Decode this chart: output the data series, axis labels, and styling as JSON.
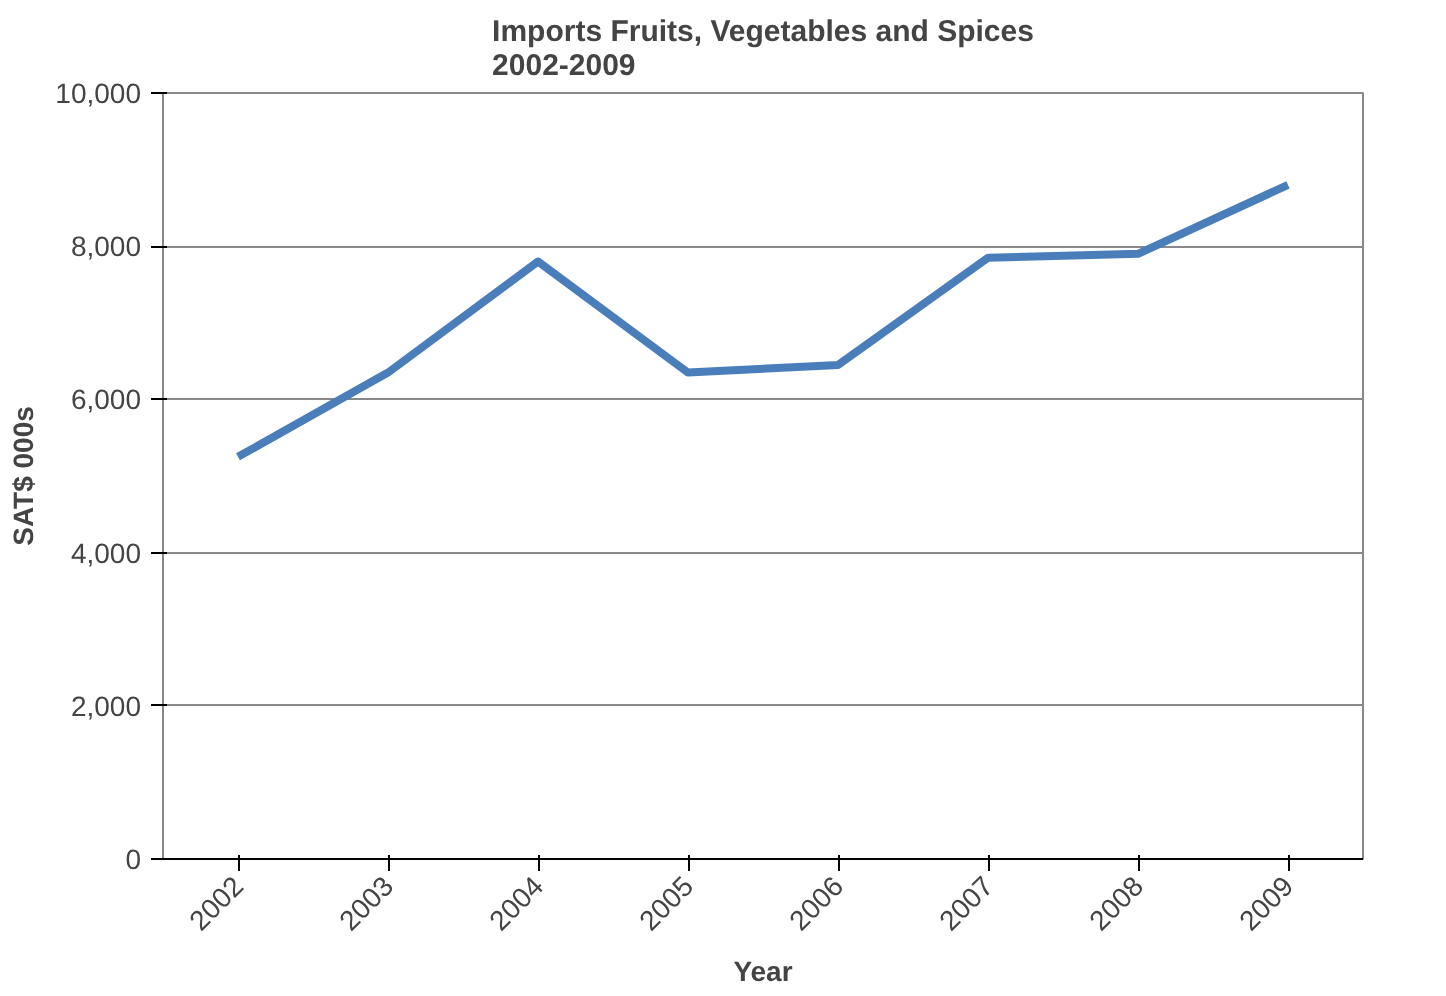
{
  "chart_data": {
    "type": "line",
    "title": "Imports Fruits, Vegetables and Spices\n2002-2009",
    "xlabel": "Year",
    "ylabel": "SAT$ 000s",
    "categories": [
      "2002",
      "2003",
      "2004",
      "2005",
      "2006",
      "2007",
      "2008",
      "2009"
    ],
    "series": [
      {
        "color": "#4a7ebb",
        "values": [
          5250,
          6350,
          7800,
          6350,
          6450,
          7850,
          7900,
          8800
        ]
      }
    ],
    "ylim": [
      0,
      10000
    ],
    "yticks": [
      {
        "value": 0,
        "label": "0"
      },
      {
        "value": 2000,
        "label": "2,000"
      },
      {
        "value": 4000,
        "label": "4,000"
      },
      {
        "value": 6000,
        "label": "6,000"
      },
      {
        "value": 8000,
        "label": "8,000"
      },
      {
        "value": 10000,
        "label": "10,000"
      }
    ],
    "grid": "y",
    "marker": "none",
    "line_style": "solid"
  }
}
